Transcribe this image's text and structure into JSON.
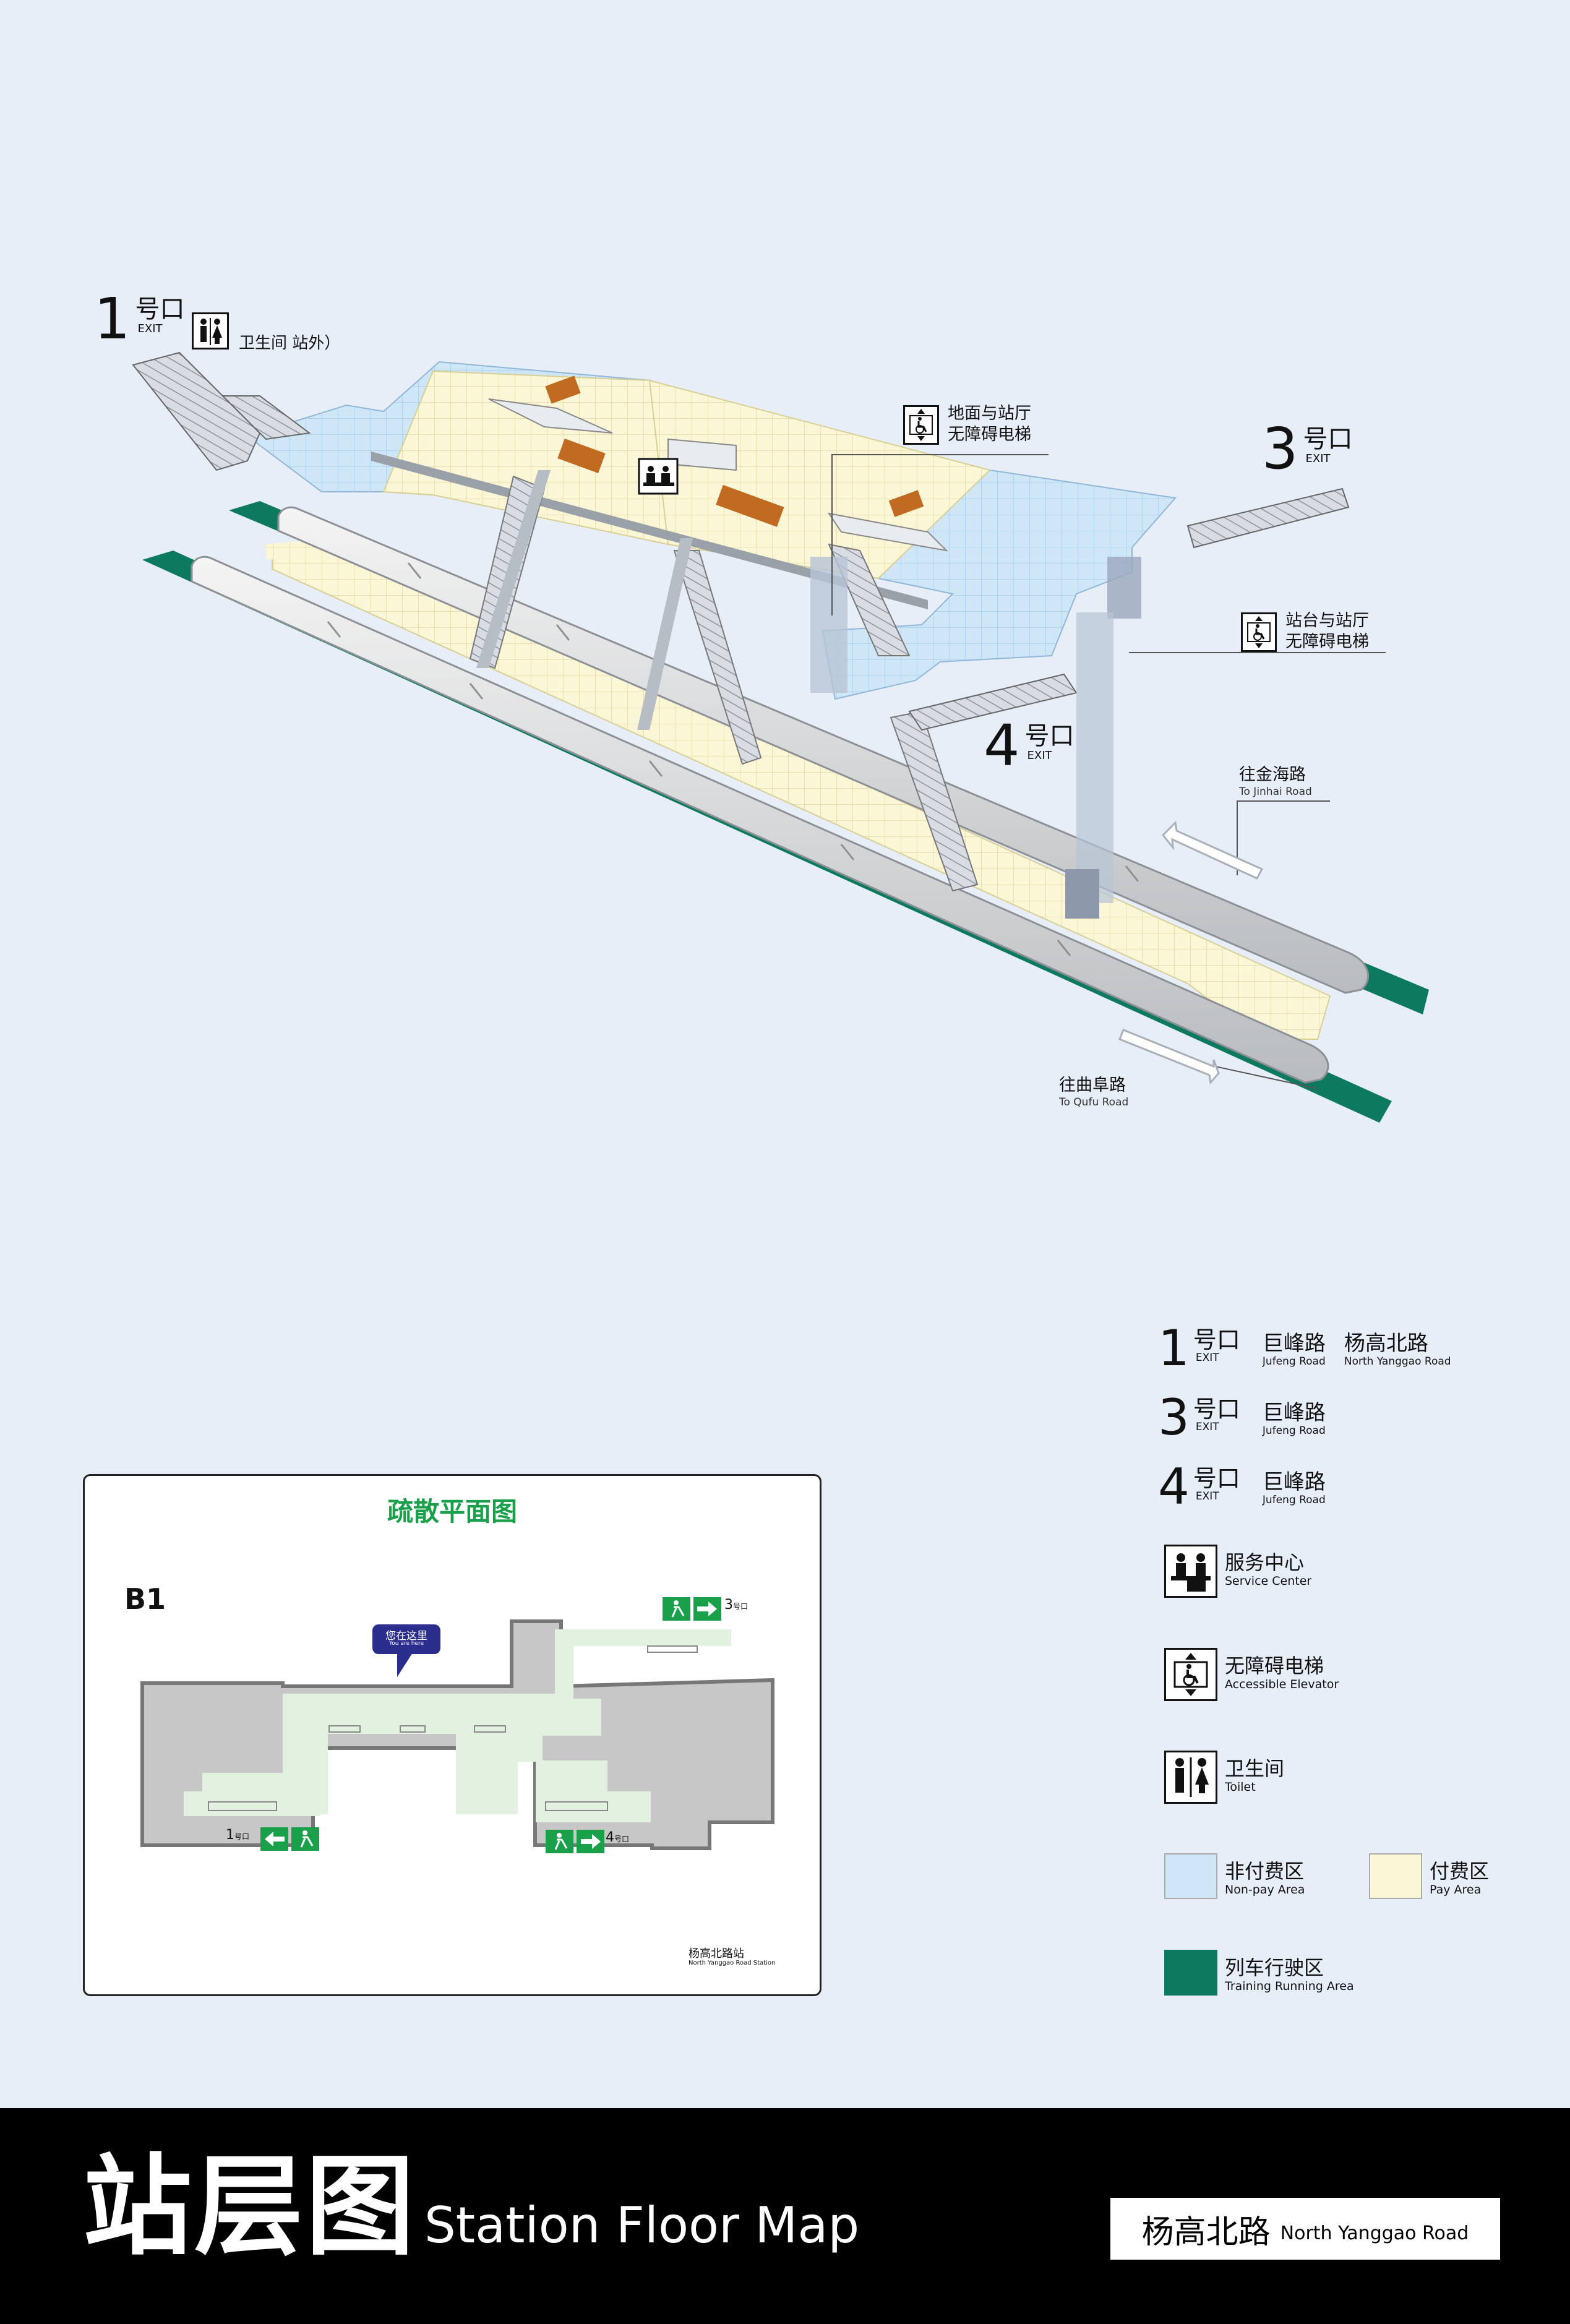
{
  "colors": {
    "background": "#e8eef8",
    "non_pay_area": "#cfe6f7",
    "pay_area": "#fbf6d6",
    "train_area": "#0d7a5f",
    "evac_green": "#1aa04a",
    "you_are_here": "#2b2d8c",
    "footer": "#000000"
  },
  "map3d": {
    "exit1": {
      "num": "1",
      "cn": "号口",
      "en": "EXIT"
    },
    "exit3": {
      "num": "3",
      "cn": "号口",
      "en": "EXIT"
    },
    "exit4": {
      "num": "4",
      "cn": "号口",
      "en": "EXIT"
    },
    "toilet_note": "卫生间  站外）",
    "ground_elevator": {
      "line1": "地面与站厅",
      "line2": "无障碍电梯",
      "icon": "accessible-elevator-icon"
    },
    "platform_elevator": {
      "line1": "站台与站厅",
      "line2": "无障碍电梯",
      "icon": "accessible-elevator-icon"
    },
    "direction_jinhai": {
      "cn": "往金海路",
      "en": "To Jinhai Road"
    },
    "direction_qufu": {
      "cn": "往曲阜路",
      "en": "To Qufu Road"
    }
  },
  "legend": {
    "exits": [
      {
        "num": "1",
        "cn": "号口",
        "en": "EXIT",
        "roads": [
          {
            "cn": "巨峰路",
            "en": "Jufeng Road"
          },
          {
            "cn": "杨高北路",
            "en": "North Yanggao Road"
          }
        ]
      },
      {
        "num": "3",
        "cn": "号口",
        "en": "EXIT",
        "roads": [
          {
            "cn": "巨峰路",
            "en": "Jufeng Road"
          }
        ]
      },
      {
        "num": "4",
        "cn": "号口",
        "en": "EXIT",
        "roads": [
          {
            "cn": "巨峰路",
            "en": "Jufeng Road"
          }
        ]
      }
    ],
    "service_center": {
      "cn": "服务中心",
      "en": "Service Center",
      "icon": "service-center-icon"
    },
    "accessible_elevator": {
      "cn": "无障碍电梯",
      "en": "Accessible Elevator",
      "icon": "accessible-elevator-icon"
    },
    "toilet": {
      "cn": "卫生间",
      "en": "Toilet",
      "icon": "toilet-icon"
    },
    "non_pay": {
      "cn": "非付费区",
      "en": "Non-pay Area"
    },
    "pay": {
      "cn": "付费区",
      "en": "Pay Area"
    },
    "train": {
      "cn": "列车行驶区",
      "en": "Training Running Area"
    }
  },
  "evacuation": {
    "title": "疏散平面图",
    "floor": "B1",
    "you_are_here_cn": "您在这里",
    "you_are_here_en": "You are here",
    "exit3_label": "3",
    "exit1_label": "1",
    "exit4_label": "4",
    "exit_suffix": "号口",
    "station_cn": "杨高北路站",
    "station_en": "North Yanggao Road Station"
  },
  "footer": {
    "title_cn": "站层图",
    "title_en": "Station Floor Map",
    "station_cn": "杨高北路",
    "station_en": "North Yanggao Road"
  }
}
